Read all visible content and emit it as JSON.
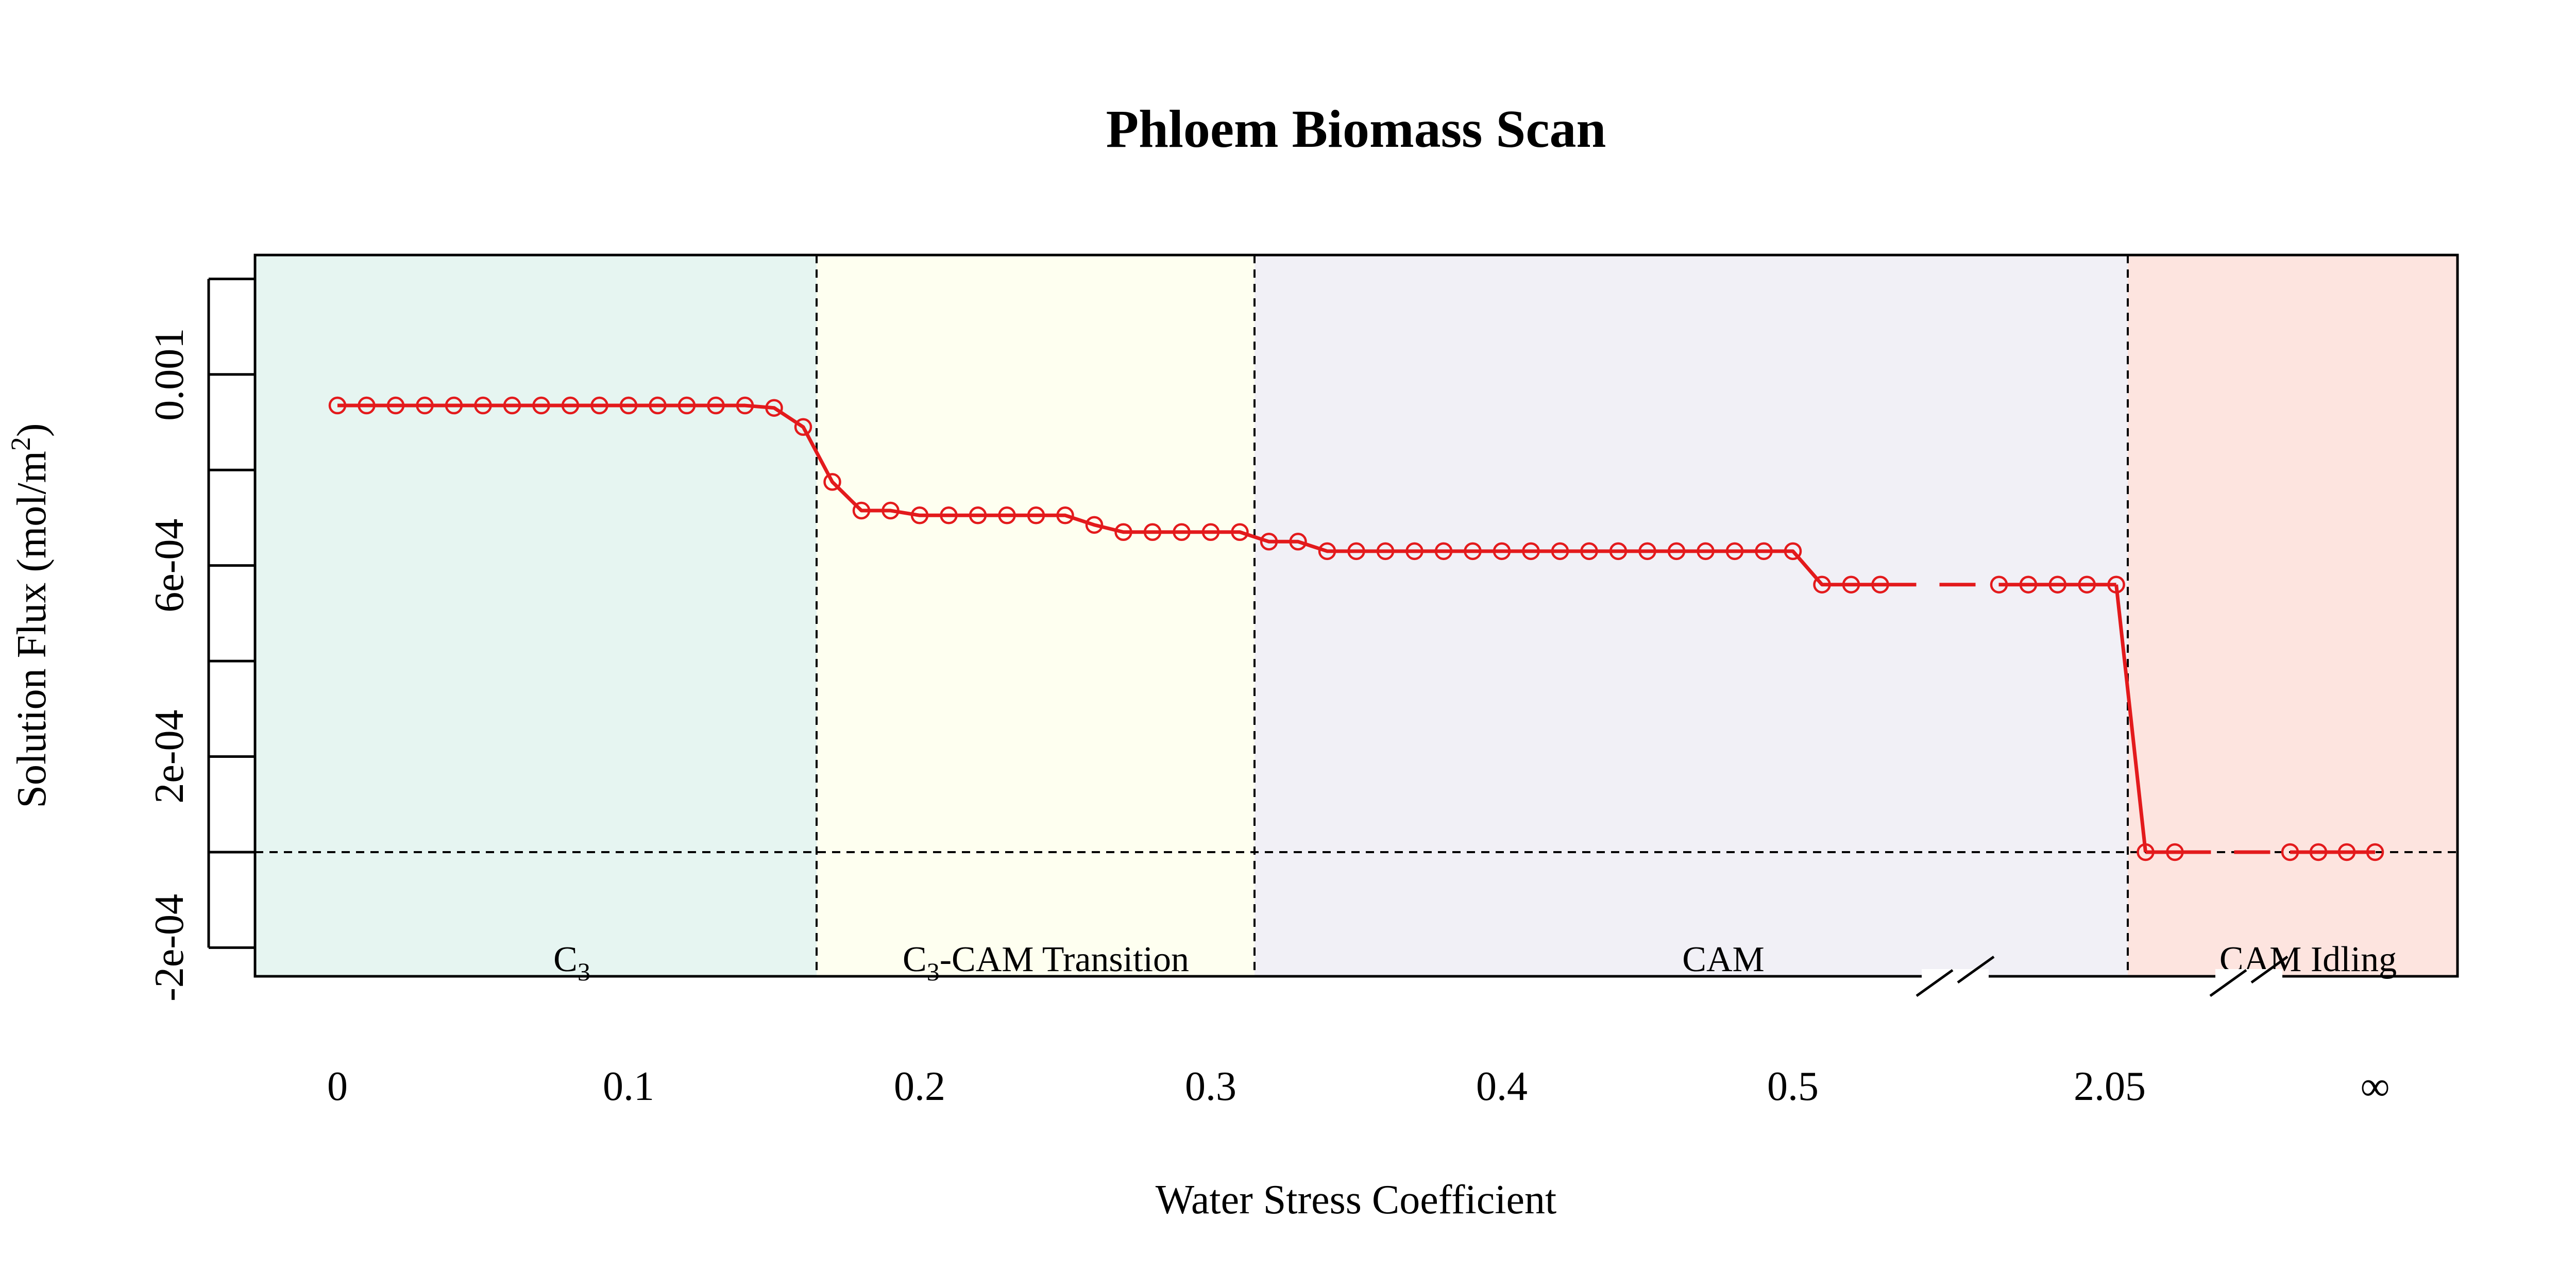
{
  "chart_data": {
    "type": "line",
    "title": "Phloem Biomass Scan",
    "xlabel": "Water Stress Coefficient",
    "ylabel": "Solution Flux (mol/m²)",
    "ylabel_parts": {
      "main": "Solution Flux (mol/m",
      "sup": "2",
      "tail": ")"
    },
    "x_tick_labels": [
      "0",
      "0.1",
      "0.2",
      "0.3",
      "0.4",
      "0.5",
      "2.05",
      "∞"
    ],
    "y_tick_labels": [
      "-2e-04",
      "2e-04",
      "6e-04",
      "0.001"
    ],
    "ylim": [
      -0.00026,
      0.00125
    ],
    "zero_line": 0,
    "regions": [
      {
        "id": "c3",
        "label": "C3",
        "label_main": "C",
        "label_sub": "3",
        "label_tail": "",
        "color": "#e6f5f1"
      },
      {
        "id": "transition",
        "label": "C3-CAM Transition",
        "label_main": "C",
        "label_sub": "3",
        "label_tail": "-CAM Transition",
        "color": "#fefff0"
      },
      {
        "id": "cam",
        "label": "CAM",
        "label_main": "CAM",
        "label_sub": "",
        "label_tail": "",
        "color": "#f1f0f6"
      },
      {
        "id": "idling",
        "label": "CAM Idling",
        "label_main": "CAM Idling",
        "label_sub": "",
        "label_tail": "",
        "color": "#fde4df"
      }
    ],
    "series": [
      {
        "color": "#e31a1c",
        "segments": [
          {
            "x": [
              0,
              0.01,
              0.02,
              0.03,
              0.04,
              0.05,
              0.06,
              0.07,
              0.08,
              0.09,
              0.1,
              0.11,
              0.12,
              0.13,
              0.14,
              0.15,
              0.16,
              0.17,
              0.18,
              0.19,
              0.2,
              0.21,
              0.22,
              0.23,
              0.24,
              0.25,
              0.26,
              0.27,
              0.28,
              0.29,
              0.3,
              0.31,
              0.32,
              0.33,
              0.34,
              0.35,
              0.36,
              0.37,
              0.38,
              0.39,
              0.4,
              0.41,
              0.42,
              0.43,
              0.44,
              0.45,
              0.46,
              0.47,
              0.48,
              0.49,
              0.5,
              0.51,
              0.52,
              0.53
            ],
            "y": [
              0.000935,
              0.000935,
              0.000935,
              0.000935,
              0.000935,
              0.000935,
              0.000935,
              0.000935,
              0.000935,
              0.000935,
              0.000935,
              0.000935,
              0.000935,
              0.000935,
              0.000935,
              0.00093,
              0.00089,
              0.000775,
              0.000715,
              0.000715,
              0.000705,
              0.000705,
              0.000705,
              0.000705,
              0.000705,
              0.000705,
              0.000685,
              0.00067,
              0.00067,
              0.00067,
              0.00067,
              0.00067,
              0.00065,
              0.00065,
              0.00063,
              0.00063,
              0.00063,
              0.00063,
              0.00063,
              0.00063,
              0.00063,
              0.00063,
              0.00063,
              0.00063,
              0.00063,
              0.00063,
              0.00063,
              0.00063,
              0.00063,
              0.00063,
              0.00063,
              0.00056,
              0.00056,
              0.00056
            ]
          },
          {
            "x": [
              2.02,
              2.03,
              2.04,
              2.05,
              2.06
            ],
            "y": [
              0.00056,
              0.00056,
              0.00056,
              0.00056,
              0.00056
            ]
          },
          {
            "x": [
              2.07,
              2.08
            ],
            "y": [
              0.0,
              0.0
            ]
          },
          {
            "x": [
              "∞ - 3",
              "∞ - 2",
              "∞ - 1",
              "∞"
            ],
            "y": [
              0.0,
              0.0,
              0.0,
              0.0
            ]
          }
        ]
      }
    ]
  }
}
